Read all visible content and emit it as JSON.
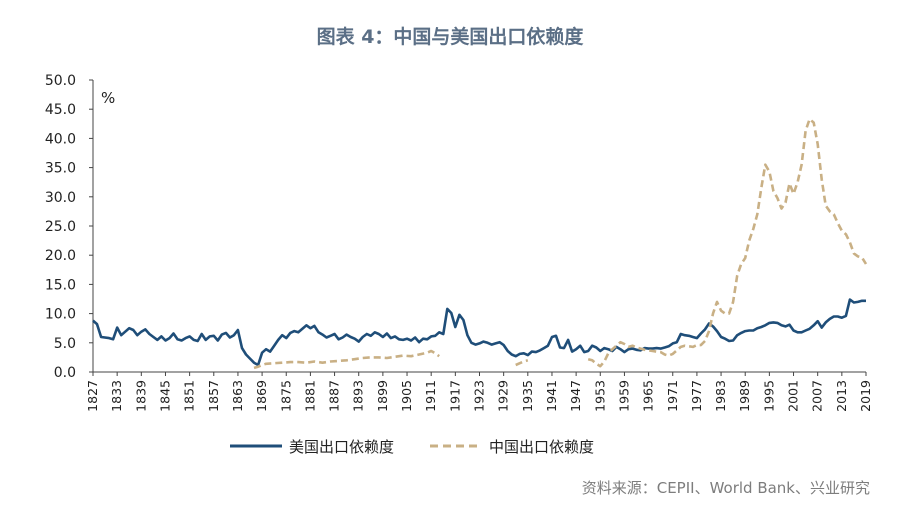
{
  "title": "图表 4：中国与美国出口依赖度",
  "source": "资料来源：CEPII、World Bank、兴业研究",
  "chart_data": {
    "type": "line",
    "ylabel": "%",
    "ylim": [
      0,
      50
    ],
    "xlim": [
      1827,
      2019
    ],
    "yticks": [
      "0.0",
      "5.0",
      "10.0",
      "15.0",
      "20.0",
      "25.0",
      "30.0",
      "35.0",
      "40.0",
      "45.0",
      "50.0"
    ],
    "xticks": [
      "1827",
      "1833",
      "1839",
      "1845",
      "1851",
      "1857",
      "1863",
      "1869",
      "1875",
      "1881",
      "1887",
      "1893",
      "1899",
      "1905",
      "1911",
      "1917",
      "1923",
      "1929",
      "1935",
      "1941",
      "1947",
      "1953",
      "1959",
      "1965",
      "1971",
      "1977",
      "1983",
      "1989",
      "1995",
      "2001",
      "2007",
      "2013",
      "2019"
    ],
    "legend_position": "bottom",
    "grid": false,
    "series": [
      {
        "name": "美国出口依赖度",
        "color": "#1f4e79",
        "style": "solid",
        "points": [
          [
            1827,
            8.8
          ],
          [
            1828,
            8.2
          ],
          [
            1829,
            6.0
          ],
          [
            1831,
            5.8
          ],
          [
            1832,
            5.6
          ],
          [
            1833,
            7.6
          ],
          [
            1834,
            6.3
          ],
          [
            1835,
            6.9
          ],
          [
            1836,
            7.5
          ],
          [
            1837,
            7.2
          ],
          [
            1838,
            6.3
          ],
          [
            1839,
            6.9
          ],
          [
            1840,
            7.3
          ],
          [
            1841,
            6.5
          ],
          [
            1842,
            6.0
          ],
          [
            1843,
            5.5
          ],
          [
            1844,
            6.1
          ],
          [
            1845,
            5.4
          ],
          [
            1846,
            5.8
          ],
          [
            1847,
            6.6
          ],
          [
            1848,
            5.6
          ],
          [
            1849,
            5.4
          ],
          [
            1850,
            5.8
          ],
          [
            1851,
            6.1
          ],
          [
            1852,
            5.5
          ],
          [
            1853,
            5.3
          ],
          [
            1854,
            6.5
          ],
          [
            1855,
            5.5
          ],
          [
            1856,
            6.1
          ],
          [
            1857,
            6.2
          ],
          [
            1858,
            5.4
          ],
          [
            1859,
            6.4
          ],
          [
            1860,
            6.7
          ],
          [
            1861,
            5.9
          ],
          [
            1862,
            6.3
          ],
          [
            1863,
            7.2
          ],
          [
            1864,
            4.1
          ],
          [
            1865,
            3.0
          ],
          [
            1866,
            2.3
          ],
          [
            1867,
            1.6
          ],
          [
            1868,
            1.2
          ],
          [
            1869,
            3.3
          ],
          [
            1870,
            3.9
          ],
          [
            1871,
            3.5
          ],
          [
            1872,
            4.5
          ],
          [
            1873,
            5.5
          ],
          [
            1874,
            6.3
          ],
          [
            1875,
            5.8
          ],
          [
            1876,
            6.7
          ],
          [
            1877,
            7.0
          ],
          [
            1878,
            6.8
          ],
          [
            1879,
            7.4
          ],
          [
            1880,
            8.0
          ],
          [
            1881,
            7.5
          ],
          [
            1882,
            7.9
          ],
          [
            1883,
            6.8
          ],
          [
            1884,
            6.4
          ],
          [
            1885,
            5.9
          ],
          [
            1886,
            6.2
          ],
          [
            1887,
            6.5
          ],
          [
            1888,
            5.6
          ],
          [
            1889,
            5.9
          ],
          [
            1890,
            6.4
          ],
          [
            1891,
            6.0
          ],
          [
            1892,
            5.7
          ],
          [
            1893,
            5.2
          ],
          [
            1894,
            6.0
          ],
          [
            1895,
            6.5
          ],
          [
            1896,
            6.2
          ],
          [
            1897,
            6.8
          ],
          [
            1898,
            6.5
          ],
          [
            1899,
            6.0
          ],
          [
            1900,
            6.6
          ],
          [
            1901,
            5.8
          ],
          [
            1902,
            6.1
          ],
          [
            1903,
            5.6
          ],
          [
            1904,
            5.5
          ],
          [
            1905,
            5.7
          ],
          [
            1906,
            5.4
          ],
          [
            1907,
            5.9
          ],
          [
            1908,
            5.1
          ],
          [
            1909,
            5.7
          ],
          [
            1910,
            5.6
          ],
          [
            1911,
            6.1
          ],
          [
            1912,
            6.2
          ],
          [
            1913,
            6.8
          ],
          [
            1914,
            6.5
          ],
          [
            1915,
            10.8
          ],
          [
            1916,
            10.1
          ],
          [
            1917,
            7.7
          ],
          [
            1918,
            9.8
          ],
          [
            1919,
            8.9
          ],
          [
            1920,
            6.3
          ],
          [
            1921,
            5.0
          ],
          [
            1922,
            4.7
          ],
          [
            1923,
            4.9
          ],
          [
            1924,
            5.2
          ],
          [
            1925,
            5.0
          ],
          [
            1926,
            4.7
          ],
          [
            1927,
            4.9
          ],
          [
            1928,
            5.1
          ],
          [
            1929,
            4.6
          ],
          [
            1930,
            3.6
          ],
          [
            1931,
            3.0
          ],
          [
            1932,
            2.7
          ],
          [
            1933,
            3.1
          ],
          [
            1934,
            3.2
          ],
          [
            1935,
            2.9
          ],
          [
            1936,
            3.5
          ],
          [
            1937,
            3.4
          ],
          [
            1938,
            3.7
          ],
          [
            1939,
            4.1
          ],
          [
            1940,
            4.5
          ],
          [
            1941,
            6.0
          ],
          [
            1942,
            6.2
          ],
          [
            1943,
            4.2
          ],
          [
            1944,
            4.1
          ],
          [
            1945,
            5.5
          ],
          [
            1946,
            3.5
          ],
          [
            1947,
            3.9
          ],
          [
            1948,
            4.5
          ],
          [
            1949,
            3.4
          ],
          [
            1950,
            3.6
          ],
          [
            1951,
            4.5
          ],
          [
            1952,
            4.2
          ],
          [
            1953,
            3.6
          ],
          [
            1954,
            4.1
          ],
          [
            1955,
            3.9
          ],
          [
            1956,
            3.6
          ],
          [
            1957,
            4.3
          ],
          [
            1958,
            3.9
          ],
          [
            1959,
            3.4
          ],
          [
            1960,
            3.9
          ],
          [
            1961,
            4.0
          ],
          [
            1962,
            3.8
          ],
          [
            1963,
            3.7
          ],
          [
            1964,
            4.1
          ],
          [
            1965,
            4.0
          ],
          [
            1966,
            4.0
          ],
          [
            1967,
            4.1
          ],
          [
            1968,
            4.0
          ],
          [
            1969,
            4.2
          ],
          [
            1970,
            4.4
          ],
          [
            1971,
            4.9
          ],
          [
            1972,
            5.1
          ],
          [
            1973,
            6.5
          ],
          [
            1974,
            6.3
          ],
          [
            1975,
            6.2
          ],
          [
            1976,
            6.0
          ],
          [
            1977,
            5.8
          ],
          [
            1978,
            6.6
          ],
          [
            1979,
            7.3
          ],
          [
            1980,
            8.3
          ],
          [
            1981,
            7.8
          ],
          [
            1982,
            7.0
          ],
          [
            1983,
            6.0
          ],
          [
            1984,
            5.7
          ],
          [
            1985,
            5.3
          ],
          [
            1986,
            5.4
          ],
          [
            1987,
            6.3
          ],
          [
            1988,
            6.7
          ],
          [
            1989,
            7.0
          ],
          [
            1990,
            7.1
          ],
          [
            1991,
            7.1
          ],
          [
            1992,
            7.5
          ],
          [
            1993,
            7.7
          ],
          [
            1994,
            8.0
          ],
          [
            1995,
            8.4
          ],
          [
            1996,
            8.5
          ],
          [
            1997,
            8.4
          ],
          [
            1998,
            8.0
          ],
          [
            1999,
            7.8
          ],
          [
            2000,
            8.1
          ],
          [
            2001,
            7.1
          ],
          [
            2002,
            6.8
          ],
          [
            2003,
            6.8
          ],
          [
            2004,
            7.1
          ],
          [
            2005,
            7.4
          ],
          [
            2006,
            8.0
          ],
          [
            2007,
            8.7
          ],
          [
            2008,
            7.6
          ],
          [
            2009,
            8.5
          ],
          [
            2010,
            9.1
          ],
          [
            2011,
            9.5
          ],
          [
            2012,
            9.5
          ],
          [
            2013,
            9.3
          ],
          [
            2014,
            9.6
          ],
          [
            2015,
            12.4
          ],
          [
            2016,
            11.9
          ],
          [
            2017,
            12.0
          ],
          [
            2018,
            12.2
          ],
          [
            2019,
            12.2
          ]
        ]
      },
      {
        "name": "中国出口依赖度",
        "color": "#c9b085",
        "style": "dashed",
        "points": [
          [
            1867,
            0.7
          ],
          [
            1868,
            0.9
          ],
          [
            1869,
            1.2
          ],
          [
            1870,
            1.4
          ],
          [
            1872,
            1.5
          ],
          [
            1874,
            1.6
          ],
          [
            1876,
            1.7
          ],
          [
            1878,
            1.7
          ],
          [
            1880,
            1.6
          ],
          [
            1882,
            1.8
          ],
          [
            1884,
            1.6
          ],
          [
            1886,
            1.8
          ],
          [
            1888,
            1.9
          ],
          [
            1890,
            2.0
          ],
          [
            1892,
            2.2
          ],
          [
            1894,
            2.4
          ],
          [
            1896,
            2.5
          ],
          [
            1898,
            2.5
          ],
          [
            1900,
            2.4
          ],
          [
            1902,
            2.6
          ],
          [
            1904,
            2.8
          ],
          [
            1906,
            2.7
          ],
          [
            1908,
            3.0
          ],
          [
            1910,
            3.3
          ],
          [
            1911,
            3.6
          ],
          [
            1912,
            3.2
          ],
          [
            1913,
            2.7
          ],
          [
            1932,
            1.2
          ],
          [
            1933,
            1.5
          ],
          [
            1934,
            1.8
          ],
          [
            1935,
            2.0
          ],
          [
            1950,
            2.2
          ],
          [
            1951,
            2.0
          ],
          [
            1952,
            1.4
          ],
          [
            1953,
            1.0
          ],
          [
            1954,
            1.8
          ],
          [
            1955,
            3.2
          ],
          [
            1956,
            3.9
          ],
          [
            1957,
            4.5
          ],
          [
            1958,
            5.1
          ],
          [
            1959,
            4.8
          ],
          [
            1960,
            4.3
          ],
          [
            1961,
            4.5
          ],
          [
            1962,
            4.2
          ],
          [
            1963,
            4.0
          ],
          [
            1964,
            3.8
          ],
          [
            1965,
            3.7
          ],
          [
            1966,
            3.6
          ],
          [
            1967,
            3.5
          ],
          [
            1968,
            3.4
          ],
          [
            1969,
            3.0
          ],
          [
            1970,
            2.8
          ],
          [
            1971,
            3.1
          ],
          [
            1972,
            3.7
          ],
          [
            1973,
            4.3
          ],
          [
            1974,
            4.5
          ],
          [
            1975,
            4.4
          ],
          [
            1976,
            4.3
          ],
          [
            1977,
            4.6
          ],
          [
            1978,
            4.6
          ],
          [
            1979,
            5.3
          ],
          [
            1980,
            7.0
          ],
          [
            1981,
            10.0
          ],
          [
            1982,
            12.0
          ],
          [
            1983,
            10.5
          ],
          [
            1984,
            10.0
          ],
          [
            1985,
            10.0
          ],
          [
            1986,
            12.0
          ],
          [
            1987,
            16.5
          ],
          [
            1988,
            18.5
          ],
          [
            1989,
            19.5
          ],
          [
            1990,
            22.5
          ],
          [
            1991,
            24.5
          ],
          [
            1992,
            27.0
          ],
          [
            1993,
            31.5
          ],
          [
            1994,
            35.5
          ],
          [
            1995,
            34.3
          ],
          [
            1996,
            31.0
          ],
          [
            1997,
            29.8
          ],
          [
            1998,
            28.0
          ],
          [
            1999,
            29.0
          ],
          [
            2000,
            32.3
          ],
          [
            2001,
            30.5
          ],
          [
            2002,
            32.5
          ],
          [
            2003,
            35.5
          ],
          [
            2004,
            41.3
          ],
          [
            2005,
            43.3
          ],
          [
            2006,
            42.7
          ],
          [
            2007,
            39.0
          ],
          [
            2008,
            33.0
          ],
          [
            2009,
            28.5
          ],
          [
            2010,
            27.5
          ],
          [
            2011,
            27.0
          ],
          [
            2012,
            25.5
          ],
          [
            2013,
            24.2
          ],
          [
            2014,
            23.6
          ],
          [
            2015,
            22.2
          ],
          [
            2016,
            20.3
          ],
          [
            2017,
            19.8
          ],
          [
            2018,
            19.6
          ],
          [
            2019,
            18.5
          ]
        ]
      }
    ]
  }
}
